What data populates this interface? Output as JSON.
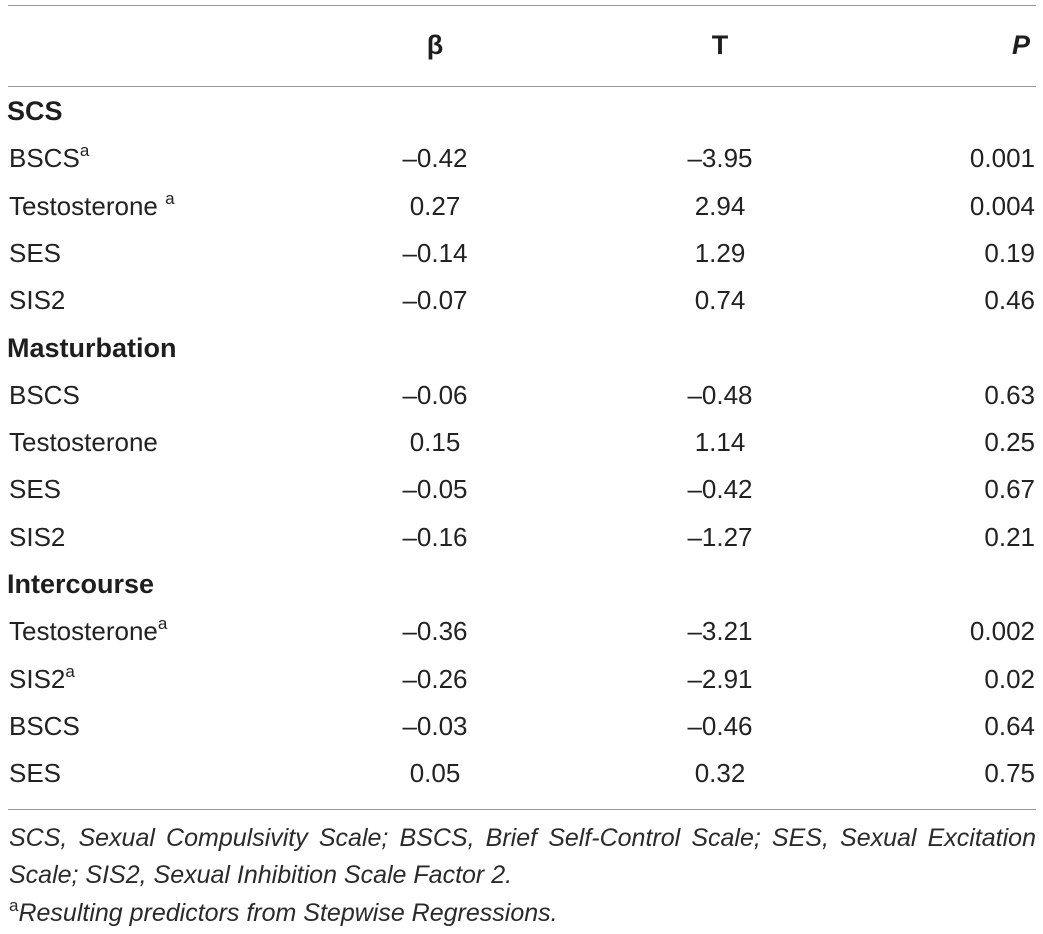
{
  "headers": {
    "label": "",
    "beta": "β",
    "t": "T",
    "p": "P"
  },
  "sections": [
    {
      "title": "SCS",
      "rows": [
        {
          "name": "BSCS",
          "sup": "a",
          "beta": "–0.42",
          "t": "–3.95",
          "p": "0.001"
        },
        {
          "name": "Testosterone ",
          "sup": "a",
          "beta": "0.27",
          "t": "2.94",
          "p": "0.004"
        },
        {
          "name": "SES",
          "sup": "",
          "beta": "–0.14",
          "t": "1.29",
          "p": "0.19"
        },
        {
          "name": "SIS2",
          "sup": "",
          "beta": "–0.07",
          "t": "0.74",
          "p": "0.46"
        }
      ]
    },
    {
      "title": "Masturbation",
      "rows": [
        {
          "name": "BSCS",
          "sup": "",
          "beta": "–0.06",
          "t": "–0.48",
          "p": "0.63"
        },
        {
          "name": "Testosterone",
          "sup": "",
          "beta": "0.15",
          "t": "1.14",
          "p": "0.25"
        },
        {
          "name": "SES",
          "sup": "",
          "beta": "–0.05",
          "t": "–0.42",
          "p": "0.67"
        },
        {
          "name": "SIS2",
          "sup": "",
          "beta": "–0.16",
          "t": "–1.27",
          "p": "0.21"
        }
      ]
    },
    {
      "title": "Intercourse",
      "rows": [
        {
          "name": "Testosterone",
          "sup": "a",
          "beta": "–0.36",
          "t": "–3.21",
          "p": "0.002"
        },
        {
          "name": "SIS2",
          "sup": "a",
          "beta": "–0.26",
          "t": "–2.91",
          "p": "0.02"
        },
        {
          "name": "BSCS",
          "sup": "",
          "beta": "–0.03",
          "t": "–0.46",
          "p": "0.64"
        },
        {
          "name": "SES",
          "sup": "",
          "beta": "0.05",
          "t": "0.32",
          "p": "0.75"
        }
      ]
    }
  ],
  "footnotes": {
    "abbreviations": "SCS, Sexual Compulsivity Scale; BSCS, Brief Self-Control Scale; SES, Sexual Excitation Scale; SIS2, Sexual Inhibition Scale Factor 2.",
    "a_marker": "a",
    "a_text": "Resulting predictors from Stepwise Regressions."
  }
}
